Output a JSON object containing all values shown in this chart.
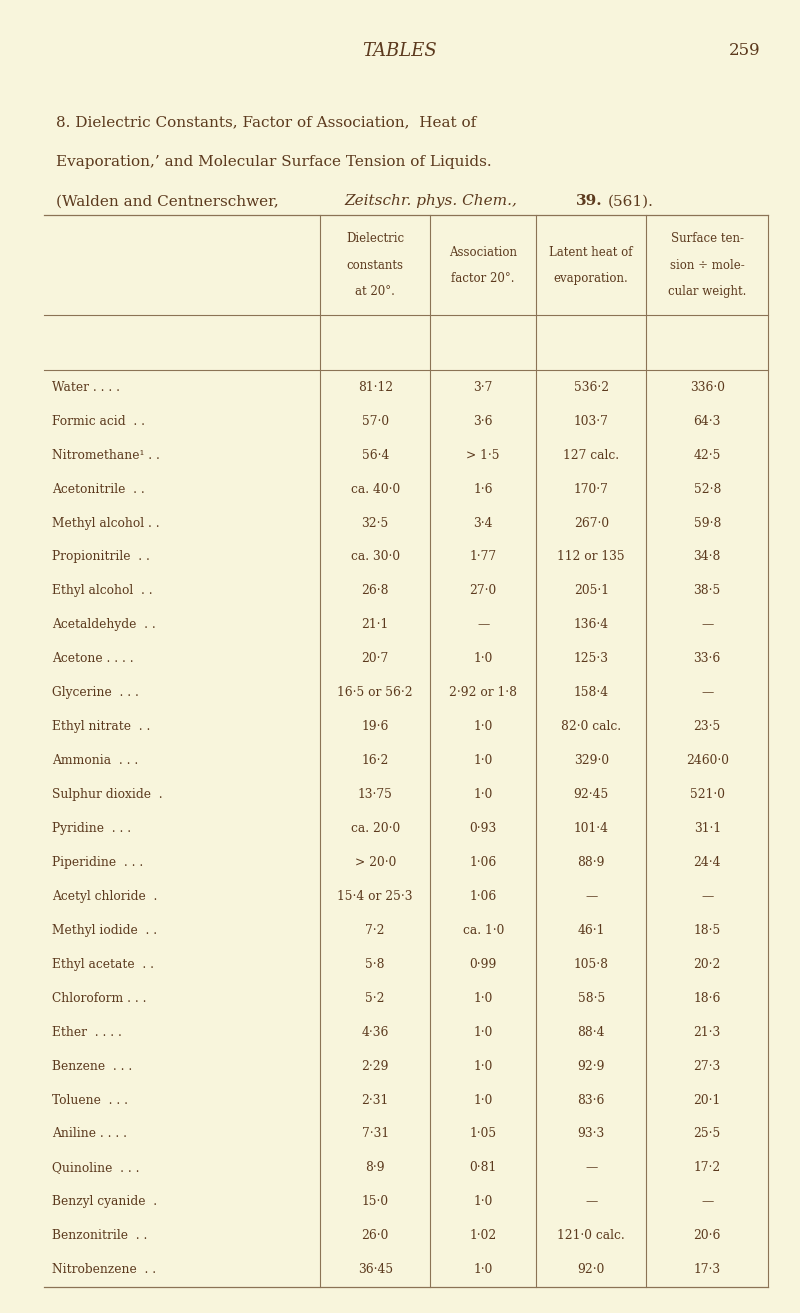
{
  "page_header": "TABLES",
  "page_number": "259",
  "rows": [
    [
      "Water . . . .",
      "81·12",
      "3·7",
      "536·2",
      "336·0"
    ],
    [
      "Formic acid  . .",
      "57·0",
      "3·6",
      "103·7",
      "64·3"
    ],
    [
      "Nitromethane¹ . .",
      "56·4",
      "> 1·5",
      "127 calc.",
      "42·5"
    ],
    [
      "Acetonitrile  . .",
      "ca. 40·0",
      "1·6",
      "170·7",
      "52·8"
    ],
    [
      "Methyl alcohol . .",
      "32·5",
      "3·4",
      "267·0",
      "59·8"
    ],
    [
      "Propionitrile  . .",
      "ca. 30·0",
      "1·77",
      "112 or 135",
      "34·8"
    ],
    [
      "Ethyl alcohol  . .",
      "26·8",
      "27·0",
      "205·1",
      "38·5"
    ],
    [
      "Acetaldehyde  . .",
      "21·1",
      "—",
      "136·4",
      "—"
    ],
    [
      "Acetone . . . .",
      "20·7",
      "1·0",
      "125·3",
      "33·6"
    ],
    [
      "Glycerine  . . .",
      "16·5 or 56·2",
      "2·92 or 1·8",
      "158·4",
      "—"
    ],
    [
      "Ethyl nitrate  . .",
      "19·6",
      "1·0",
      "82·0 calc.",
      "23·5"
    ],
    [
      "Ammonia  . . .",
      "16·2",
      "1·0",
      "329·0",
      "2460·0"
    ],
    [
      "Sulphur dioxide  .",
      "13·75",
      "1·0",
      "92·45",
      "521·0"
    ],
    [
      "Pyridine  . . .",
      "ca. 20·0",
      "0·93",
      "101·4",
      "31·1"
    ],
    [
      "Piperidine  . . .",
      "> 20·0",
      "1·06",
      "88·9",
      "24·4"
    ],
    [
      "Acetyl chloride  .",
      "15·4 or 25·3",
      "1·06",
      "—",
      "—"
    ],
    [
      "Methyl iodide  . .",
      "7·2",
      "ca. 1·0",
      "46·1",
      "18·5"
    ],
    [
      "Ethyl acetate  . .",
      "5·8",
      "0·99",
      "105·8",
      "20·2"
    ],
    [
      "Chloroform . . .",
      "5·2",
      "1·0",
      "58·5",
      "18·6"
    ],
    [
      "Ether  . . . .",
      "4·36",
      "1·0",
      "88·4",
      "21·3"
    ],
    [
      "Benzene  . . .",
      "2·29",
      "1·0",
      "92·9",
      "27·3"
    ],
    [
      "Toluene  . . .",
      "2·31",
      "1·0",
      "83·6",
      "20·1"
    ],
    [
      "Aniline . . . .",
      "7·31",
      "1·05",
      "93·3",
      "25·5"
    ],
    [
      "Quinoline  . . .",
      "8·9",
      "0·81",
      "—",
      "17·2"
    ],
    [
      "Benzyl cyanide  .",
      "15·0",
      "1·0",
      "—",
      "—"
    ],
    [
      "Benzonitrile  . .",
      "26·0",
      "1·02",
      "121·0 calc.",
      "20·6"
    ],
    [
      "Nitrobenzene  . .",
      "36·45",
      "1·0",
      "92·0",
      "17·3"
    ]
  ],
  "col_headers": [
    [
      "Dielectric",
      "constants",
      "at 20°."
    ],
    [
      "Association",
      "factor 20°."
    ],
    [
      "Latent heat of",
      "evaporation."
    ],
    [
      "Surface ten-",
      "sion ÷ mole-",
      "cular weight."
    ]
  ],
  "bg_color": "#f8f5dc",
  "text_color": "#5c3a1e",
  "line_color": "#8b7355"
}
